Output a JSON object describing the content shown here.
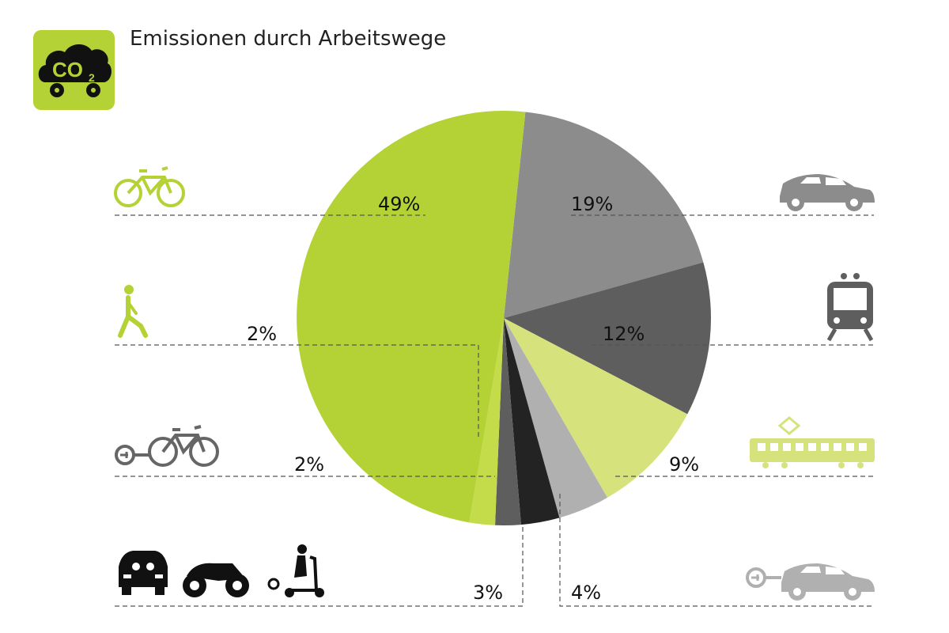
{
  "title": "Emissionen durch Arbeitswege",
  "logo": {
    "icon": "co2-car-icon",
    "text_main": "CO",
    "text_sub": "2",
    "color": "#b4d235"
  },
  "chart_data": {
    "type": "pie",
    "title": "Emissionen durch Arbeitswege",
    "unit": "%",
    "start_angle_deg": 6,
    "direction": "clockwise",
    "slices": [
      {
        "icon": "car-icon",
        "value": 19,
        "label": "19%",
        "color": "#8c8c8c"
      },
      {
        "icon": "train-icon",
        "value": 12,
        "label": "12%",
        "color": "#5e5e5e"
      },
      {
        "icon": "tram-icon",
        "value": 9,
        "label": "9%",
        "color": "#d6e37c"
      },
      {
        "icon": "electric-car-icon",
        "value": 4,
        "label": "4%",
        "color": "#b0b0b0"
      },
      {
        "icon": "car-motorcycle-scooter-icon",
        "value": 3,
        "label": "3%",
        "color": "#232323"
      },
      {
        "icon": "e-bike-icon",
        "value": 2,
        "label": "2%",
        "color": "#5e5e5e"
      },
      {
        "icon": "walking-icon",
        "value": 2,
        "label": "2%",
        "color": "#c4dc4a"
      },
      {
        "icon": "bicycle-icon",
        "value": 49,
        "label": "49%",
        "color": "#b4d235"
      }
    ]
  },
  "colors": {
    "green": "#b4d235",
    "light_green": "#d6e37c",
    "grey": "#8c8c8c",
    "dark_grey": "#5e5e5e",
    "light_grey": "#b0b0b0",
    "black": "#232323"
  }
}
